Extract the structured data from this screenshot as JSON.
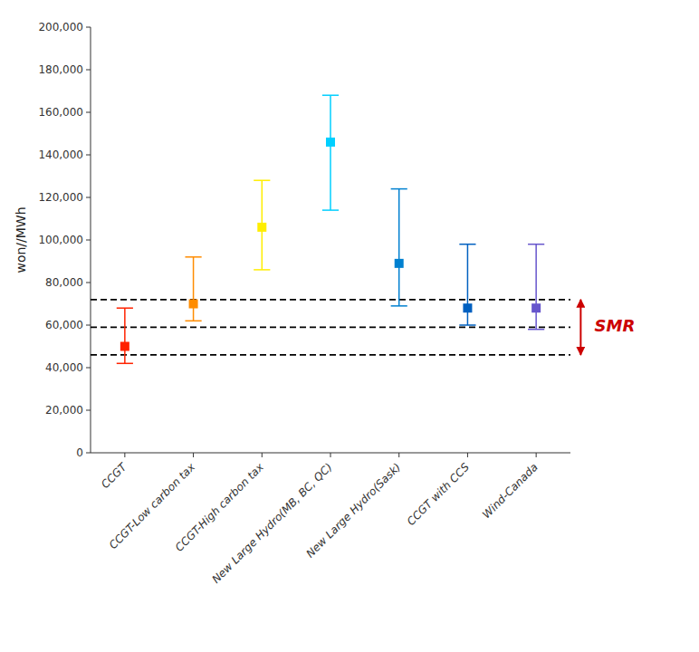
{
  "chart_data": {
    "type": "errorbar",
    "categories": [
      "CCGT",
      "CCGT-Low carbon tax",
      "CCGT-High carbon tax",
      "New Large Hydro(MB, BC, QC)",
      "New Large Hydro(Sask)",
      "CCGT with CCS",
      "Wind-Canada"
    ],
    "values": [
      50000,
      70000,
      106000,
      146000,
      89000,
      68000,
      68000
    ],
    "error_lower": [
      8000,
      8000,
      20000,
      32000,
      20000,
      8000,
      10000
    ],
    "error_upper": [
      18000,
      22000,
      22000,
      22000,
      35000,
      30000,
      30000
    ],
    "colors": [
      "#ff2200",
      "#ff8c00",
      "#ffee00",
      "#00cfff",
      "#0080d0",
      "#0060c0",
      "#6655cc"
    ],
    "marker": "square",
    "reference_lines": {
      "values": [
        46000,
        59000,
        72000
      ],
      "color": "#000000",
      "line_style": "dashed"
    },
    "annotations": [
      {
        "text": "SMR",
        "from": 46000,
        "to": 72000,
        "color": "#cc0000"
      }
    ],
    "ylabel": "won//MWh",
    "ylim": [
      0,
      200000
    ],
    "yticks": [
      0,
      {
        "value": 20000,
        "label": "20,000"
      },
      {
        "value": 40000,
        "label": "40,000"
      },
      {
        "value": 60000,
        "label": "60,000"
      },
      {
        "value": 80000,
        "label": "80,000"
      },
      {
        "value": 100000,
        "label": "100,000"
      },
      {
        "value": 120000,
        "label": "120,000"
      },
      {
        "value": 140000,
        "label": "140,000"
      },
      {
        "value": 160000,
        "label": "160,000"
      },
      {
        "value": 180000,
        "label": "180,000"
      },
      {
        "value": 200000,
        "label": "200,000"
      }
    ],
    "grid": false
  }
}
